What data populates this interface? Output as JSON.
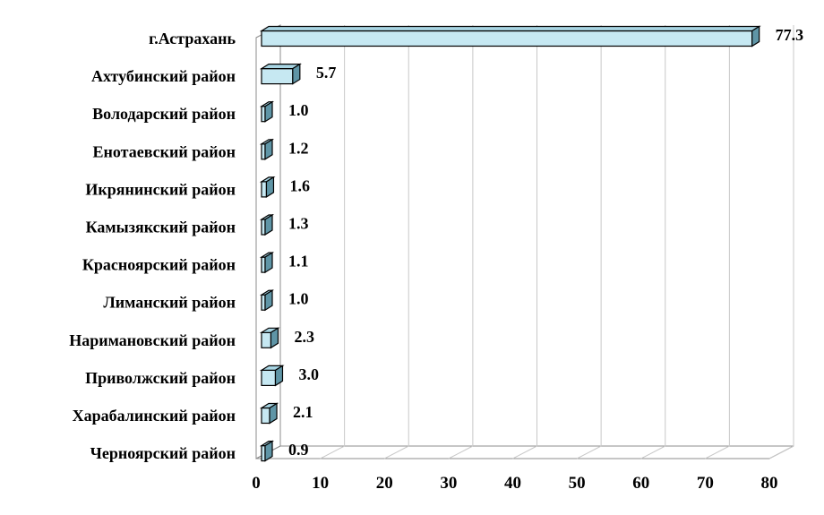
{
  "chart_data": {
    "type": "bar",
    "orientation": "horizontal",
    "style": "3d",
    "categories": [
      "г.Астрахань",
      "Ахтубинский район",
      "Володарский район",
      "Енотаевский район",
      "Икрянинский район",
      "Камызякский район",
      "Красноярский район",
      "Лиманский район",
      "Наримановский район",
      "Приволжский район",
      "Харабалинский район",
      "Черноярский район"
    ],
    "values": [
      77.3,
      5.7,
      1.0,
      1.2,
      1.6,
      1.3,
      1.1,
      1.0,
      2.3,
      3.0,
      2.1,
      0.9
    ],
    "value_labels": [
      "77.3",
      "5.7",
      "1.0",
      "1.2",
      "1.6",
      "1.3",
      "1.1",
      "1.0",
      "2.3",
      "3.0",
      "2.1",
      "0.9"
    ],
    "xlim": [
      0,
      80
    ],
    "x_ticks": [
      "0",
      "10",
      "20",
      "30",
      "40",
      "50",
      "60",
      "70",
      "80"
    ],
    "grid": true,
    "colors": {
      "bar_front": "#c6e8f2",
      "bar_side": "#5f95a6",
      "bar_top": "#a8d5e3",
      "bar_stroke": "#000000",
      "grid": "#c8c8c8",
      "axis": "#8c8c8c"
    }
  }
}
